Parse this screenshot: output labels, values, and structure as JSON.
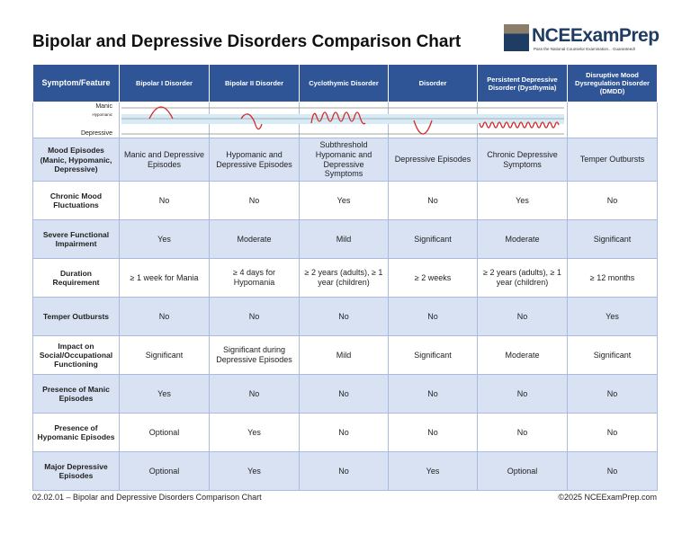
{
  "title": "Bipolar and Depressive Disorders Comparison Chart",
  "logo": {
    "name": "NCEExamPrep",
    "tagline": "Pass the National Counselor Examination... Guaranteed!"
  },
  "headers": [
    "Symptom/Feature",
    "Bipolar I Disorder",
    "Bipolar II Disorder",
    "Cyclothymic Disorder",
    "Disorder",
    "Persistent Depressive Disorder (Dysthymia)",
    "Disruptive Mood Dysregulation Disorder (DMDD)"
  ],
  "graph_labels": {
    "manic": "Manic",
    "hypomanic": "Hypomanic",
    "depressive": "Depressive"
  },
  "graph_line_color": "#d62828",
  "rows": [
    [
      "Mood Episodes (Manic, Hypomanic, Depressive)",
      "Manic and Depressive Episodes",
      "Hypomanic and Depressive Episodes",
      "Subthreshold Hypomanic and Depressive Symptoms",
      "Depressive Episodes",
      "Chronic Depressive Symptoms",
      "Temper Outbursts"
    ],
    [
      "Chronic Mood Fluctuations",
      "No",
      "No",
      "Yes",
      "No",
      "Yes",
      "No"
    ],
    [
      "Severe Functional Impairment",
      "Yes",
      "Moderate",
      "Mild",
      "Significant",
      "Moderate",
      "Significant"
    ],
    [
      "Duration Requirement",
      "≥ 1 week for Mania",
      "≥ 4 days for Hypomania",
      "≥ 2 years (adults), ≥ 1 year (children)",
      "≥ 2 weeks",
      "≥ 2 years (adults), ≥ 1 year (children)",
      "≥ 12 months"
    ],
    [
      "Temper Outbursts",
      "No",
      "No",
      "No",
      "No",
      "No",
      "Yes"
    ],
    [
      "Impact on Social/Occupational Functioning",
      "Significant",
      "Significant during Depressive Episodes",
      "Mild",
      "Significant",
      "Moderate",
      "Significant"
    ],
    [
      "Presence of Manic Episodes",
      "Yes",
      "No",
      "No",
      "No",
      "No",
      "No"
    ],
    [
      "Presence of Hypomanic Episodes",
      "Optional",
      "Yes",
      "No",
      "No",
      "No",
      "No"
    ],
    [
      "Major Depressive Episodes",
      "Optional",
      "Yes",
      "No",
      "Yes",
      "Optional",
      "No"
    ]
  ],
  "footer": {
    "left": "02.02.01 – Bipolar and Depressive Disorders Comparison Chart",
    "right": "©2025 NCEExamPrep.com"
  }
}
